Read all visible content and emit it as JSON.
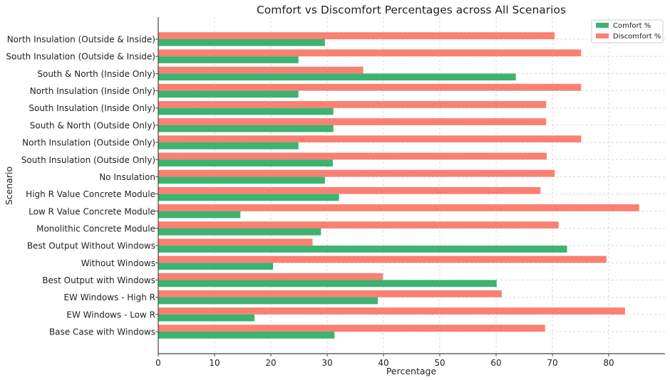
{
  "chart_data": {
    "type": "bar",
    "orientation": "horizontal",
    "title": "Comfort vs Discomfort Percentages across All Scenarios",
    "xlabel": "Percentage",
    "ylabel": "Scenario",
    "xlim": [
      0,
      90
    ],
    "xticks": [
      0,
      10,
      20,
      30,
      40,
      50,
      60,
      70,
      80
    ],
    "grid": true,
    "legend_position": "top-right",
    "categories": [
      "North Insulation (Outside & Inside)",
      "South Insulation (Outside & Inside)",
      "South & North (Inside Only)",
      "North Insulation (Inside Only)",
      "South Insulation (Inside Only)",
      "South & North (Outside Only)",
      "North Insulation (Outside Only)",
      "South Insulation (Outside Only)",
      "No Insulation",
      "High R Value Concrete Module",
      "Low R Value Concrete Module",
      "Monolithic Concrete Module",
      "Best Output Without Windows",
      "Without Windows",
      "Best Output with Windows",
      "EW Windows - High R",
      "EW Windows - Low R",
      "Base Case with Windows"
    ],
    "series": [
      {
        "name": "Comfort %",
        "color": "#3cb371",
        "values": [
          29.6,
          24.9,
          63.5,
          24.9,
          31.1,
          31.1,
          24.9,
          31.0,
          29.6,
          32.1,
          14.6,
          28.9,
          72.6,
          20.4,
          60.1,
          39.0,
          17.1,
          31.3
        ]
      },
      {
        "name": "Discomfort %",
        "color": "#fa8072",
        "values": [
          70.4,
          75.1,
          36.4,
          75.1,
          68.9,
          68.9,
          75.1,
          69.0,
          70.4,
          67.9,
          85.4,
          71.1,
          27.4,
          79.6,
          39.9,
          61.0,
          82.9,
          68.7
        ]
      }
    ]
  }
}
